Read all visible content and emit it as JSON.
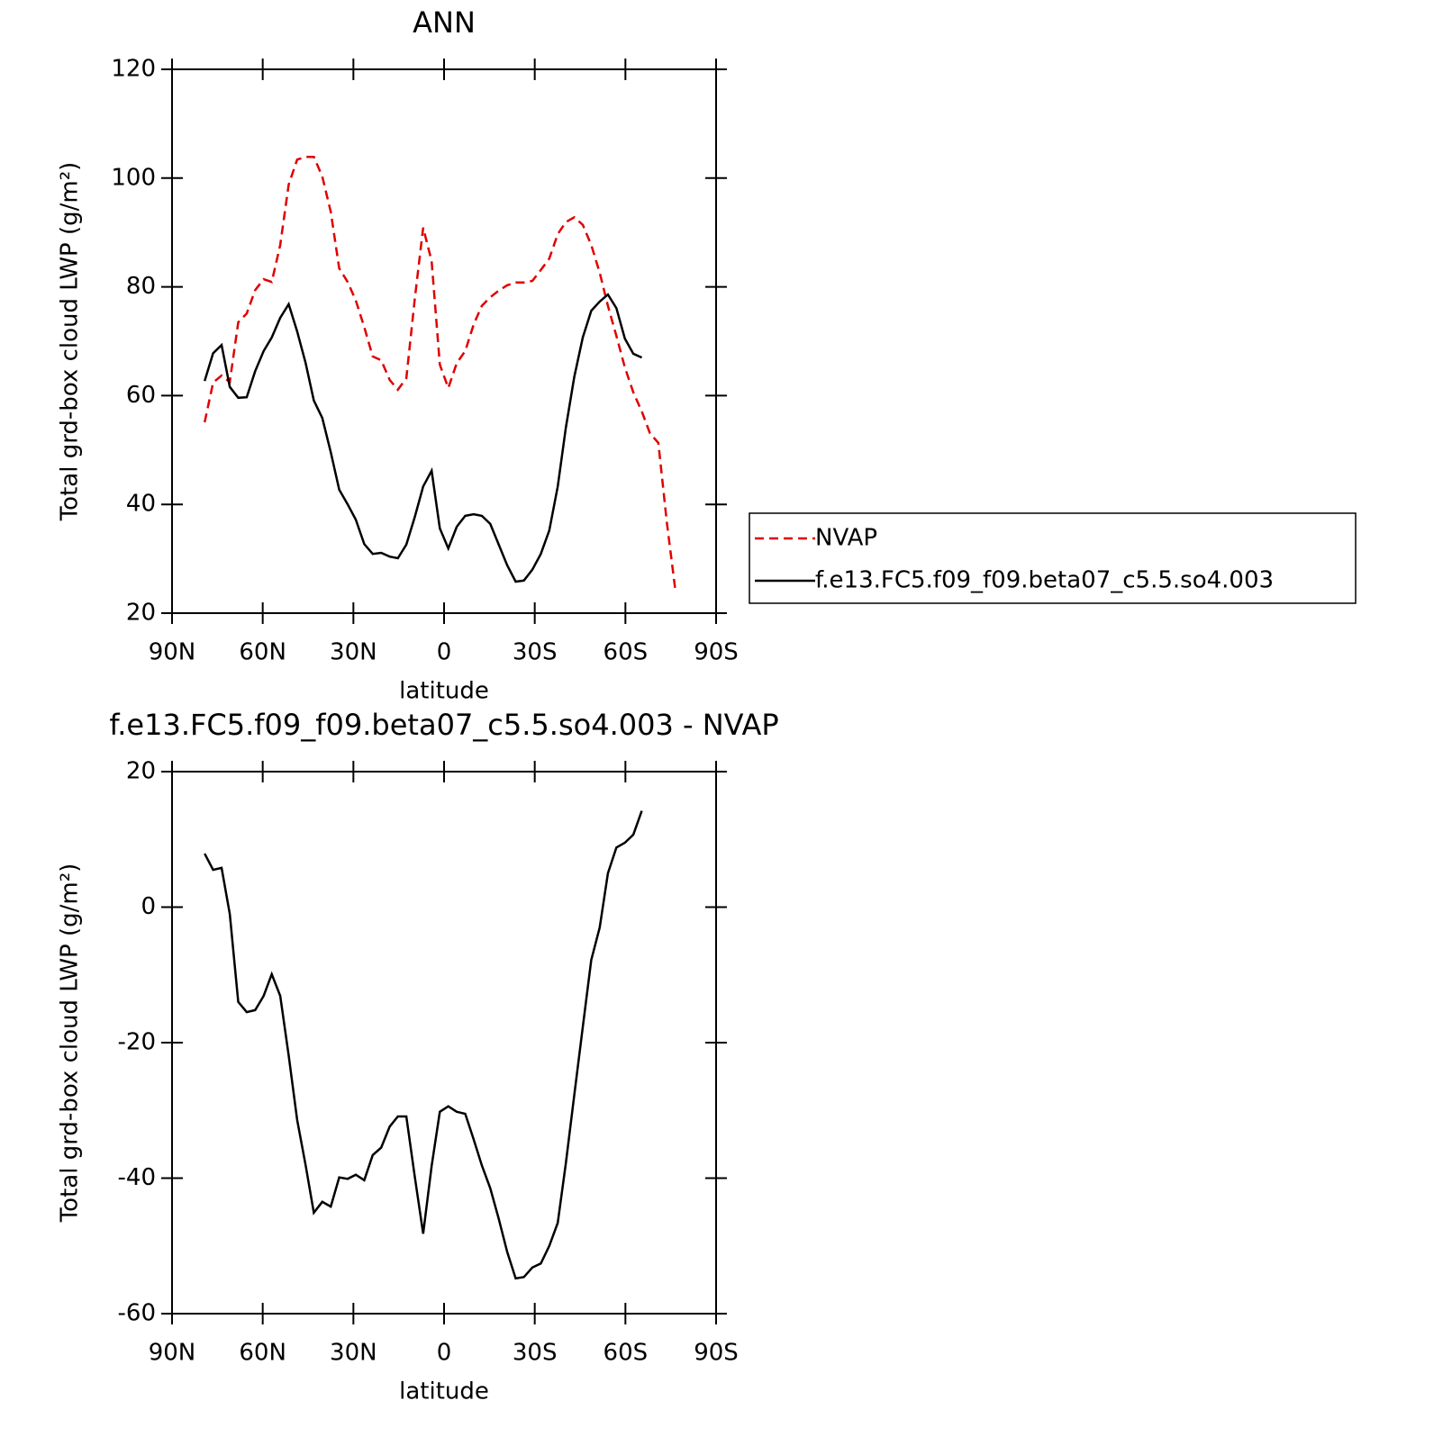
{
  "chart_data": [
    {
      "type": "line",
      "title": "ANN",
      "xlabel": "latitude",
      "ylabel": "Total grd-box cloud LWP (g/m²)",
      "xlim": [
        90,
        -90
      ],
      "ylim": [
        20,
        120
      ],
      "xticks": [
        {
          "value": 90,
          "label": "90N"
        },
        {
          "value": 60,
          "label": "60N"
        },
        {
          "value": 30,
          "label": "30N"
        },
        0,
        {
          "value": -30,
          "label": "30S"
        },
        {
          "value": -60,
          "label": "60S"
        },
        {
          "value": -90,
          "label": "90S"
        }
      ],
      "yticks": [
        20,
        40,
        60,
        80,
        100,
        120
      ],
      "legend": "right",
      "x": [
        79.2,
        76.4,
        73.6,
        70.9,
        68.1,
        65.3,
        62.5,
        59.7,
        57.0,
        54.2,
        51.4,
        48.6,
        45.8,
        43.1,
        40.3,
        37.5,
        34.7,
        31.9,
        29.2,
        26.4,
        23.6,
        20.8,
        18.0,
        15.3,
        12.5,
        9.7,
        6.9,
        4.1,
        1.4,
        -1.4,
        -4.2,
        -7.0,
        -9.8,
        -12.5,
        -15.3,
        -18.1,
        -20.9,
        -23.7,
        -26.4,
        -29.2,
        -32.0,
        -34.8,
        -37.6,
        -40.3,
        -43.1,
        -45.9,
        -48.7,
        -51.5,
        -54.2,
        -57.0,
        -59.8,
        -62.6,
        -65.4,
        -68.1,
        -70.9,
        -73.7,
        -76.5
      ],
      "series": [
        {
          "name": "NVAP",
          "color": "#e00000",
          "dash": true,
          "values": [
            55.1,
            62.4,
            63.7,
            62.5,
            73.5,
            75.1,
            79.4,
            81.4,
            80.9,
            87.7,
            98.8,
            103.4,
            103.9,
            103.9,
            100.3,
            93.8,
            83.4,
            80.9,
            77.5,
            72.6,
            67.2,
            66.5,
            62.9,
            61.1,
            63.2,
            77.8,
            90.9,
            84.7,
            65.7,
            61.4,
            66.0,
            68.2,
            73.1,
            76.5,
            78.1,
            79.3,
            80.3,
            80.8,
            80.8,
            81.1,
            83.1,
            85.2,
            89.7,
            91.9,
            92.8,
            91.4,
            87.7,
            82.6,
            76.5,
            71.0,
            65.2,
            60.6,
            57.1,
            53.1,
            51.3,
            36.7,
            24.3
          ]
        },
        {
          "name": "f.e13.FC5.f09_f09.beta07_c5.5.so4.003",
          "color": "#000000",
          "dash": false,
          "values": [
            62.7,
            67.8,
            69.3,
            61.6,
            59.6,
            59.7,
            64.5,
            68.2,
            70.7,
            74.3,
            76.8,
            71.8,
            66.0,
            59.1,
            55.9,
            49.6,
            42.7,
            40.0,
            37.2,
            32.7,
            30.9,
            31.1,
            30.4,
            30.1,
            32.6,
            37.7,
            43.3,
            46.2,
            35.6,
            31.9,
            35.9,
            37.9,
            38.2,
            37.9,
            36.4,
            32.6,
            28.8,
            25.8,
            26.0,
            28.0,
            30.9,
            35.2,
            43.3,
            54.1,
            63.5,
            70.7,
            75.6,
            77.3,
            78.6,
            76.1,
            70.5,
            67.7,
            67.0,
            null,
            null,
            null,
            null
          ]
        }
      ]
    },
    {
      "type": "line",
      "title": "f.e13.FC5.f09_f09.beta07_c5.5.so4.003 - NVAP",
      "xlabel": "latitude",
      "ylabel": "Total grd-box cloud LWP (g/m²)",
      "xlim": [
        90,
        -90
      ],
      "ylim": [
        -60,
        20
      ],
      "xticks": [
        {
          "value": 90,
          "label": "90N"
        },
        {
          "value": 60,
          "label": "60N"
        },
        {
          "value": 30,
          "label": "30N"
        },
        0,
        {
          "value": -30,
          "label": "30S"
        },
        {
          "value": -60,
          "label": "60S"
        },
        {
          "value": -90,
          "label": "90S"
        }
      ],
      "yticks": [
        -60,
        -40,
        -20,
        0,
        20
      ],
      "x": [
        79.2,
        76.4,
        73.6,
        70.9,
        68.1,
        65.3,
        62.5,
        59.7,
        57.0,
        54.2,
        51.4,
        48.6,
        45.8,
        43.1,
        40.3,
        37.5,
        34.7,
        31.9,
        29.2,
        26.4,
        23.6,
        20.8,
        18.0,
        15.3,
        12.5,
        9.7,
        6.9,
        4.1,
        1.4,
        -1.4,
        -4.2,
        -7.0,
        -9.8,
        -12.5,
        -15.3,
        -18.1,
        -20.9,
        -23.7,
        -26.4,
        -29.2,
        -32.0,
        -34.8,
        -37.6,
        -40.3,
        -43.1,
        -45.9,
        -48.7,
        -51.5,
        -54.2,
        -57.0,
        -59.8,
        -62.6,
        -65.4
      ],
      "series": [
        {
          "color": "#000000",
          "dash": false,
          "values": [
            7.9,
            5.5,
            5.8,
            -1.0,
            -14.0,
            -15.5,
            -15.2,
            -13.1,
            -9.9,
            -13.1,
            -21.9,
            -31.4,
            -38.1,
            -45.1,
            -43.5,
            -44.2,
            -39.9,
            -40.1,
            -39.5,
            -40.3,
            -36.6,
            -35.5,
            -32.4,
            -30.9,
            -30.9,
            -39.8,
            -48.2,
            -38.2,
            -30.2,
            -29.4,
            -30.2,
            -30.5,
            -34.3,
            -38.1,
            -41.5,
            -46.0,
            -50.9,
            -54.8,
            -54.6,
            -53.2,
            -52.6,
            -50.0,
            -46.6,
            -37.8,
            -27.7,
            -17.7,
            -7.8,
            -3.0,
            5.0,
            8.8,
            9.5,
            10.7,
            14.2
          ]
        }
      ]
    }
  ]
}
